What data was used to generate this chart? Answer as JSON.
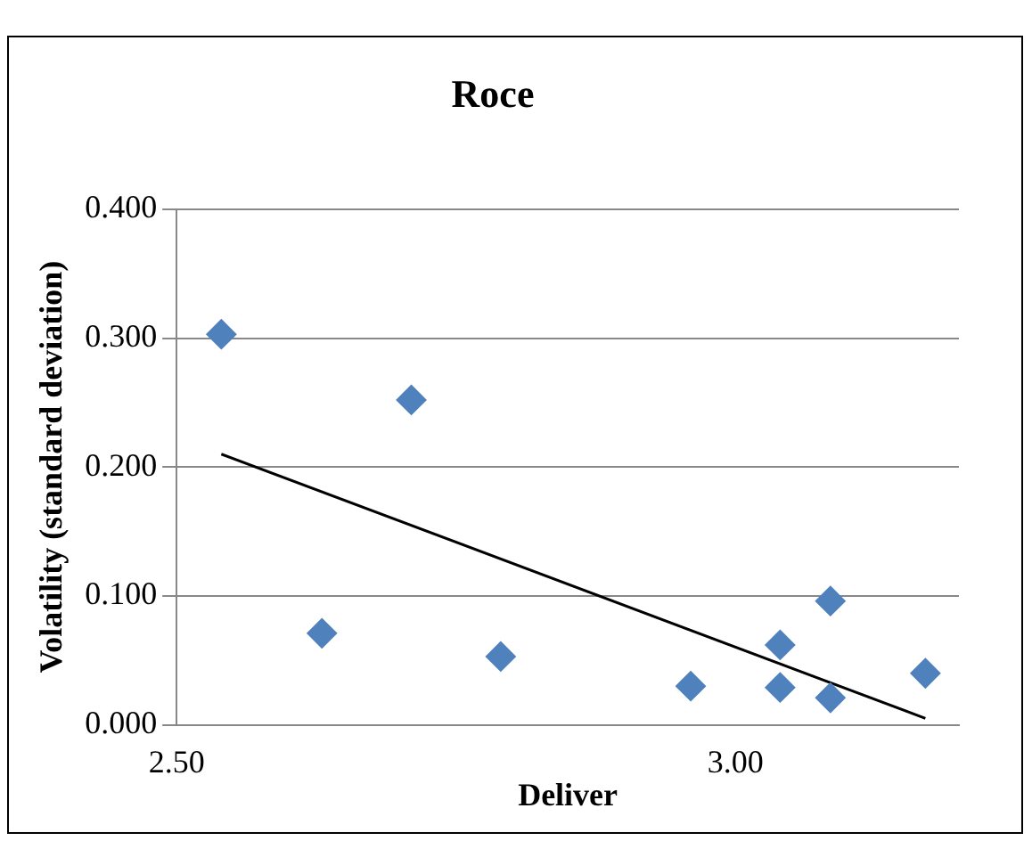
{
  "chart_data": {
    "type": "scatter",
    "title": "Roce",
    "xlabel": "Deliver",
    "ylabel": "Volatility (standard deviation)",
    "x": [
      2.54,
      2.63,
      2.71,
      2.79,
      2.96,
      3.04,
      3.04,
      3.085,
      3.085,
      3.17
    ],
    "series": [
      {
        "color": "#4f81bd",
        "values": [
          0.303,
          0.071,
          0.252,
          0.053,
          0.03,
          0.062,
          0.029,
          0.096,
          0.021,
          0.04
        ]
      },
      {
        "type": "line",
        "color": "#000000",
        "x": [
          2.54,
          3.17
        ],
        "values": [
          0.21,
          0.005
        ],
        "marker": "none"
      }
    ],
    "marker": "diamond",
    "xlim": [
      2.5,
      3.2
    ],
    "xticks": [
      {
        "value": 2.5,
        "label": "2.50"
      },
      {
        "value": 3.0,
        "label": "3.00"
      }
    ],
    "ylim": [
      0,
      0.4
    ],
    "yticks": [
      {
        "value": 0,
        "label": "0.000"
      },
      {
        "value": 0.1,
        "label": "0.100"
      },
      {
        "value": 0.2,
        "label": "0.200"
      },
      {
        "value": 0.3,
        "label": "0.300"
      },
      {
        "value": 0.4,
        "label": "0.400"
      }
    ],
    "grid": "y",
    "legend": false
  }
}
